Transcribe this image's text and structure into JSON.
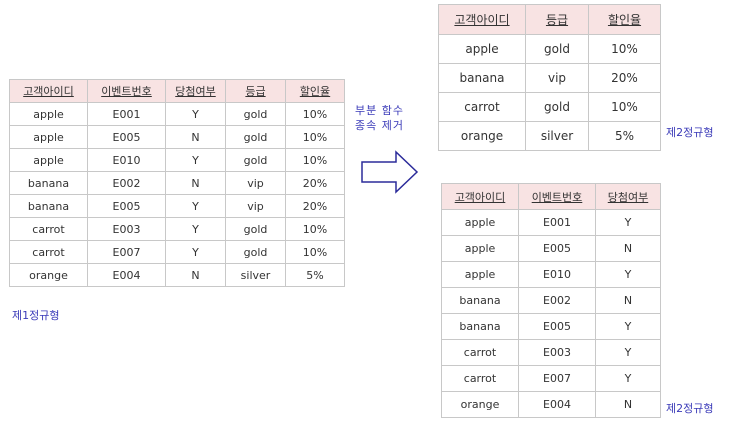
{
  "table1": {
    "headers": [
      "고객아이디",
      "이벤트번호",
      "당첨여부",
      "등급",
      "할인율"
    ],
    "rows": [
      [
        "apple",
        "E001",
        "Y",
        "gold",
        "10%"
      ],
      [
        "apple",
        "E005",
        "N",
        "gold",
        "10%"
      ],
      [
        "apple",
        "E010",
        "Y",
        "gold",
        "10%"
      ],
      [
        "banana",
        "E002",
        "N",
        "vip",
        "20%"
      ],
      [
        "banana",
        "E005",
        "Y",
        "vip",
        "20%"
      ],
      [
        "carrot",
        "E003",
        "Y",
        "gold",
        "10%"
      ],
      [
        "carrot",
        "E007",
        "Y",
        "gold",
        "10%"
      ],
      [
        "orange",
        "E004",
        "N",
        "silver",
        "5%"
      ]
    ],
    "caption": "제1정규형"
  },
  "arrow_label": {
    "line1": "부분 함수",
    "line2": "종속 제거"
  },
  "table2": {
    "headers": [
      "고객아이디",
      "등급",
      "할인율"
    ],
    "rows": [
      [
        "apple",
        "gold",
        "10%"
      ],
      [
        "banana",
        "vip",
        "20%"
      ],
      [
        "carrot",
        "gold",
        "10%"
      ],
      [
        "orange",
        "silver",
        "5%"
      ]
    ],
    "caption": "제2정규형"
  },
  "table3": {
    "headers": [
      "고객아이디",
      "이벤트번호",
      "당첨여부"
    ],
    "rows": [
      [
        "apple",
        "E001",
        "Y"
      ],
      [
        "apple",
        "E005",
        "N"
      ],
      [
        "apple",
        "E010",
        "Y"
      ],
      [
        "banana",
        "E002",
        "N"
      ],
      [
        "banana",
        "E005",
        "Y"
      ],
      [
        "carrot",
        "E003",
        "Y"
      ],
      [
        "carrot",
        "E007",
        "Y"
      ],
      [
        "orange",
        "E004",
        "N"
      ]
    ],
    "caption": "제2정규형"
  },
  "colors": {
    "header_bg": "#f8e3e3",
    "border": "#c8c8c8",
    "caption_text": "#3a3ab8",
    "arrow_stroke": "#2b2b9a"
  }
}
